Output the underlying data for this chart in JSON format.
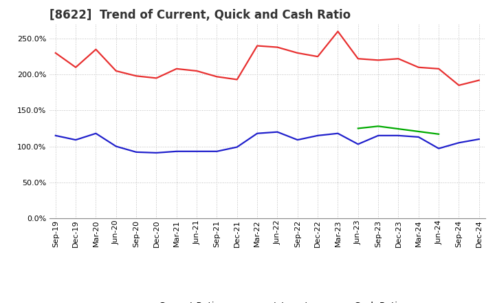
{
  "title": "[8622]  Trend of Current, Quick and Cash Ratio",
  "x_labels": [
    "Sep-19",
    "Dec-19",
    "Mar-20",
    "Jun-20",
    "Sep-20",
    "Dec-20",
    "Mar-21",
    "Jun-21",
    "Sep-21",
    "Dec-21",
    "Mar-22",
    "Jun-22",
    "Sep-22",
    "Dec-22",
    "Mar-23",
    "Jun-23",
    "Sep-23",
    "Dec-23",
    "Mar-24",
    "Jun-24",
    "Sep-24",
    "Dec-24"
  ],
  "current_ratio": [
    230,
    210,
    235,
    205,
    198,
    195,
    208,
    205,
    197,
    193,
    240,
    238,
    230,
    225,
    260,
    222,
    220,
    222,
    210,
    208,
    185,
    192
  ],
  "quick_ratio": [
    null,
    null,
    null,
    null,
    null,
    null,
    null,
    null,
    null,
    null,
    null,
    null,
    null,
    null,
    null,
    125,
    128,
    null,
    null,
    117,
    null,
    null
  ],
  "cash_ratio": [
    115,
    109,
    118,
    100,
    92,
    91,
    93,
    93,
    93,
    99,
    118,
    120,
    109,
    115,
    118,
    103,
    115,
    115,
    113,
    97,
    105,
    110
  ],
  "current_color": "#e83030",
  "quick_color": "#00aa00",
  "cash_color": "#2020cc",
  "ylim": [
    0,
    270
  ],
  "yticks": [
    0,
    50,
    100,
    150,
    200,
    250
  ],
  "background_color": "#ffffff",
  "plot_bg_color": "#ffffff",
  "grid_color": "#bbbbbb",
  "title_fontsize": 12,
  "legend_fontsize": 9.5,
  "tick_fontsize": 8
}
